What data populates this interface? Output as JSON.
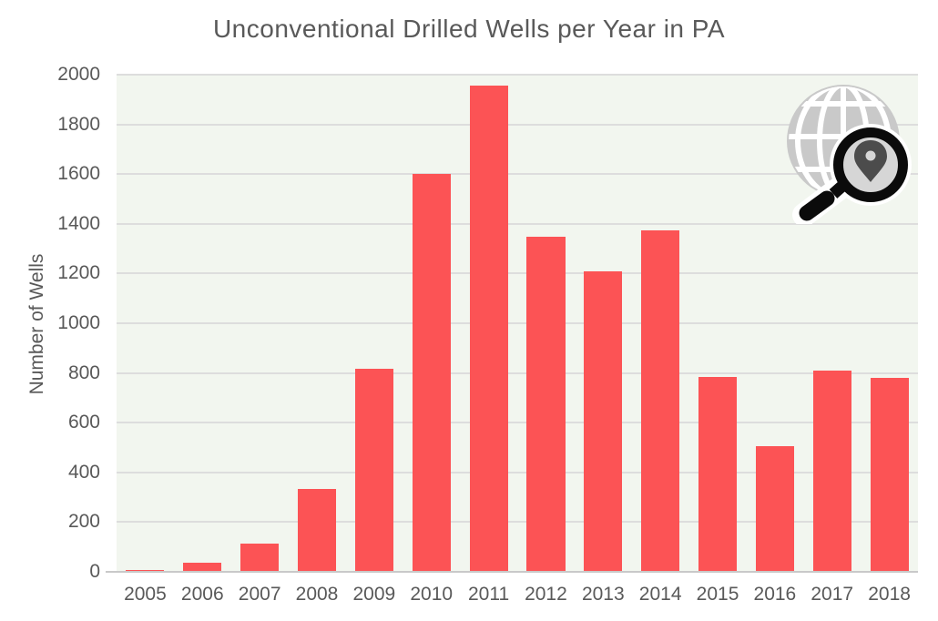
{
  "chart_data": {
    "type": "bar",
    "title": "Unconventional Drilled Wells per Year in PA",
    "xlabel": "",
    "ylabel": "Number of Wells",
    "categories": [
      "2005",
      "2006",
      "2007",
      "2008",
      "2009",
      "2010",
      "2011",
      "2012",
      "2013",
      "2014",
      "2015",
      "2016",
      "2017",
      "2018"
    ],
    "values": [
      9,
      37,
      113,
      332,
      817,
      1599,
      1956,
      1347,
      1208,
      1372,
      785,
      504,
      810,
      779
    ],
    "ylim": [
      0,
      2000
    ],
    "ytick_step": 200,
    "grid": "horizontal",
    "legend": "none",
    "bar_color": "#FC5355",
    "plot_background": "#F2F6EF",
    "gridline_color": "#DDDDDD",
    "axis_line_color": "#C9C9C9",
    "text_color": "#595959"
  },
  "logo": {
    "name": "globe-location-search-icon",
    "globe_color": "#C9C9C9",
    "grid_line_color": "#FFFFFF",
    "magnifier_color": "#0B0B0B",
    "lens_fill_color": "#D6D6D6",
    "pin_color": "#4C4C4C",
    "halo_color": "#FFFFFF"
  }
}
